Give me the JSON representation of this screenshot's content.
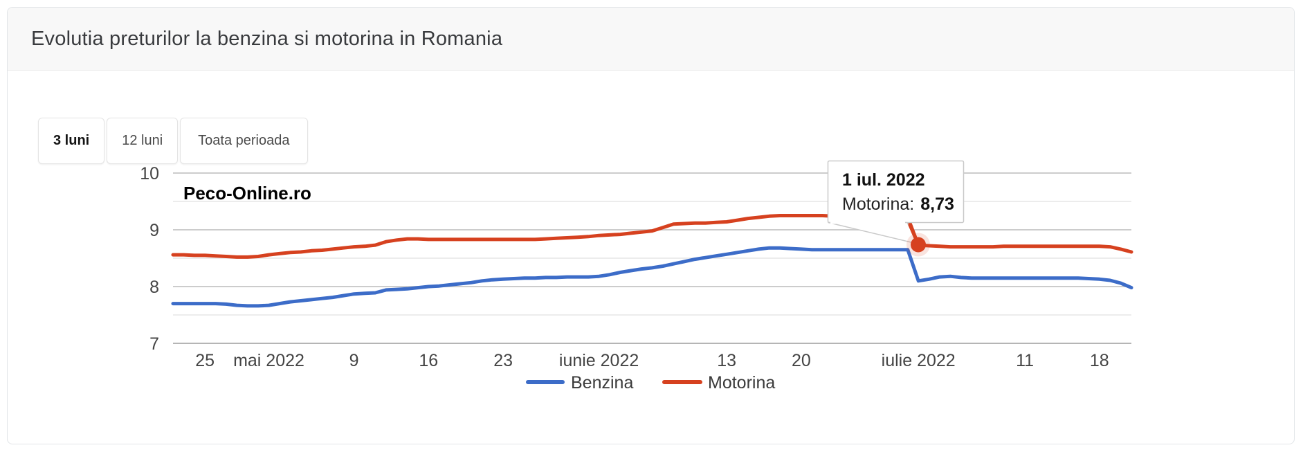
{
  "header": {
    "title": "Evolutia preturilor la benzina si motorina in Romania"
  },
  "controls": {
    "range_buttons": [
      {
        "label": "3 luni",
        "active": true
      },
      {
        "label": "12 luni",
        "active": false
      },
      {
        "label": "Toata perioada",
        "active": false
      }
    ]
  },
  "watermark": "Peco-Online.ro",
  "tooltip": {
    "date": "2022-07-01",
    "date_label": "1 iul. 2022",
    "series": "Motorina",
    "series_label": "Motorina:",
    "value": 8.73,
    "value_label": "8,73"
  },
  "colors": {
    "benzina": "#3c6cc8",
    "motorina": "#d6411f",
    "grid_major": "#cccccc",
    "grid_minor": "#ececec",
    "grid_base": "#b5b5b5",
    "axis_text": "#444444",
    "legend_text": "#3a3a3a"
  },
  "chart_data": {
    "type": "line",
    "title": "Evolutia preturilor la benzina si motorina in Romania",
    "xlabel": "",
    "ylabel": "",
    "ylim": [
      7,
      10
    ],
    "grid": true,
    "legend_position": "bottom",
    "y_major_ticks": [
      7,
      8,
      9,
      10
    ],
    "y_minor_ticks": [
      7.5,
      8.5,
      9.5
    ],
    "x_ticks": [
      {
        "date": "2022-04-25",
        "label": "25"
      },
      {
        "date": "2022-05-01",
        "label": "mai 2022"
      },
      {
        "date": "2022-05-09",
        "label": "9"
      },
      {
        "date": "2022-05-16",
        "label": "16"
      },
      {
        "date": "2022-05-23",
        "label": "23"
      },
      {
        "date": "2022-06-01",
        "label": "iunie 2022"
      },
      {
        "date": "2022-06-13",
        "label": "13"
      },
      {
        "date": "2022-06-20",
        "label": "20"
      },
      {
        "date": "2022-07-01",
        "label": "iulie 2022"
      },
      {
        "date": "2022-07-11",
        "label": "11"
      },
      {
        "date": "2022-07-18",
        "label": "18"
      }
    ],
    "dates": [
      "2022-04-22",
      "2022-04-23",
      "2022-04-24",
      "2022-04-25",
      "2022-04-26",
      "2022-04-27",
      "2022-04-28",
      "2022-04-29",
      "2022-04-30",
      "2022-05-01",
      "2022-05-02",
      "2022-05-03",
      "2022-05-04",
      "2022-05-05",
      "2022-05-06",
      "2022-05-07",
      "2022-05-08",
      "2022-05-09",
      "2022-05-10",
      "2022-05-11",
      "2022-05-12",
      "2022-05-13",
      "2022-05-14",
      "2022-05-15",
      "2022-05-16",
      "2022-05-17",
      "2022-05-18",
      "2022-05-19",
      "2022-05-20",
      "2022-05-21",
      "2022-05-22",
      "2022-05-23",
      "2022-05-24",
      "2022-05-25",
      "2022-05-26",
      "2022-05-27",
      "2022-05-28",
      "2022-05-29",
      "2022-05-30",
      "2022-05-31",
      "2022-06-01",
      "2022-06-02",
      "2022-06-03",
      "2022-06-04",
      "2022-06-05",
      "2022-06-06",
      "2022-06-07",
      "2022-06-08",
      "2022-06-09",
      "2022-06-10",
      "2022-06-11",
      "2022-06-12",
      "2022-06-13",
      "2022-06-14",
      "2022-06-15",
      "2022-06-16",
      "2022-06-17",
      "2022-06-18",
      "2022-06-19",
      "2022-06-20",
      "2022-06-21",
      "2022-06-22",
      "2022-06-23",
      "2022-06-24",
      "2022-06-25",
      "2022-06-26",
      "2022-06-27",
      "2022-06-28",
      "2022-06-29",
      "2022-06-30",
      "2022-07-01",
      "2022-07-02",
      "2022-07-03",
      "2022-07-04",
      "2022-07-05",
      "2022-07-06",
      "2022-07-07",
      "2022-07-08",
      "2022-07-09",
      "2022-07-10",
      "2022-07-11",
      "2022-07-12",
      "2022-07-13",
      "2022-07-14",
      "2022-07-15",
      "2022-07-16",
      "2022-07-17",
      "2022-07-18",
      "2022-07-19",
      "2022-07-20",
      "2022-07-21"
    ],
    "series": [
      {
        "name": "Benzina",
        "color": "#3c6cc8",
        "values": [
          7.7,
          7.7,
          7.7,
          7.7,
          7.7,
          7.69,
          7.67,
          7.66,
          7.66,
          7.67,
          7.7,
          7.73,
          7.75,
          7.77,
          7.79,
          7.81,
          7.84,
          7.87,
          7.88,
          7.89,
          7.94,
          7.95,
          7.96,
          7.98,
          8.0,
          8.01,
          8.03,
          8.05,
          8.07,
          8.1,
          8.12,
          8.13,
          8.14,
          8.15,
          8.15,
          8.16,
          8.16,
          8.17,
          8.17,
          8.17,
          8.18,
          8.21,
          8.25,
          8.28,
          8.31,
          8.33,
          8.36,
          8.4,
          8.44,
          8.48,
          8.51,
          8.54,
          8.57,
          8.6,
          8.63,
          8.66,
          8.68,
          8.68,
          8.67,
          8.66,
          8.65,
          8.65,
          8.65,
          8.65,
          8.65,
          8.65,
          8.65,
          8.65,
          8.65,
          8.65,
          8.1,
          8.13,
          8.17,
          8.18,
          8.16,
          8.15,
          8.15,
          8.15,
          8.15,
          8.15,
          8.15,
          8.15,
          8.15,
          8.15,
          8.15,
          8.15,
          8.14,
          8.13,
          8.11,
          8.06,
          7.98
        ]
      },
      {
        "name": "Motorina",
        "color": "#d6411f",
        "values": [
          8.56,
          8.56,
          8.55,
          8.55,
          8.54,
          8.53,
          8.52,
          8.52,
          8.53,
          8.56,
          8.58,
          8.6,
          8.61,
          8.63,
          8.64,
          8.66,
          8.68,
          8.7,
          8.71,
          8.73,
          8.79,
          8.82,
          8.84,
          8.84,
          8.83,
          8.83,
          8.83,
          8.83,
          8.83,
          8.83,
          8.83,
          8.83,
          8.83,
          8.83,
          8.83,
          8.84,
          8.85,
          8.86,
          8.87,
          8.88,
          8.9,
          8.91,
          8.92,
          8.94,
          8.96,
          8.98,
          9.04,
          9.1,
          9.11,
          9.12,
          9.12,
          9.13,
          9.14,
          9.17,
          9.2,
          9.22,
          9.24,
          9.25,
          9.25,
          9.25,
          9.25,
          9.25,
          9.24,
          9.24,
          9.23,
          9.23,
          9.22,
          9.22,
          9.22,
          9.22,
          8.73,
          8.72,
          8.71,
          8.7,
          8.7,
          8.7,
          8.7,
          8.7,
          8.71,
          8.71,
          8.71,
          8.71,
          8.71,
          8.71,
          8.71,
          8.71,
          8.71,
          8.71,
          8.7,
          8.66,
          8.61
        ]
      }
    ]
  }
}
